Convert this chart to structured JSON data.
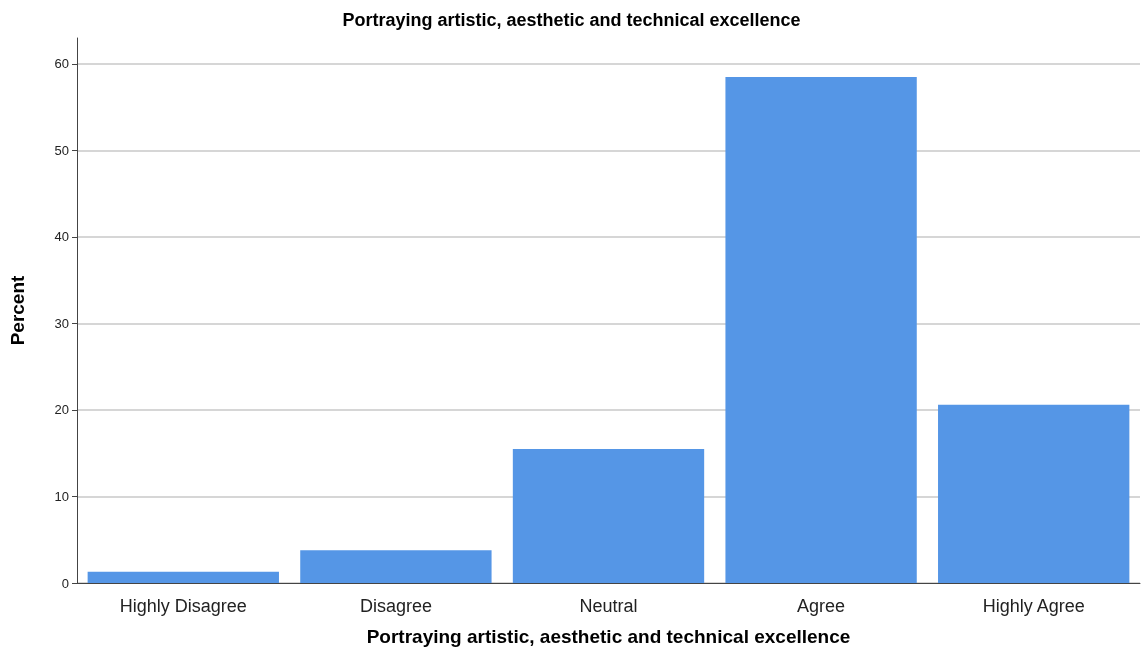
{
  "chart_data": {
    "type": "bar",
    "title": "Portraying artistic, aesthetic and technical excellence",
    "xlabel": "Portraying artistic, aesthetic and technical excellence",
    "ylabel": "Percent",
    "categories": [
      "Highly Disagree",
      "Disagree",
      "Neutral",
      "Agree",
      "Highly Agree"
    ],
    "values": [
      1.3,
      3.8,
      15.5,
      58.5,
      20.6
    ],
    "color": "#5596e6",
    "ylim": [
      0,
      63
    ],
    "yticks": [
      0,
      10,
      20,
      30,
      40,
      50,
      60
    ],
    "grid": "y"
  }
}
